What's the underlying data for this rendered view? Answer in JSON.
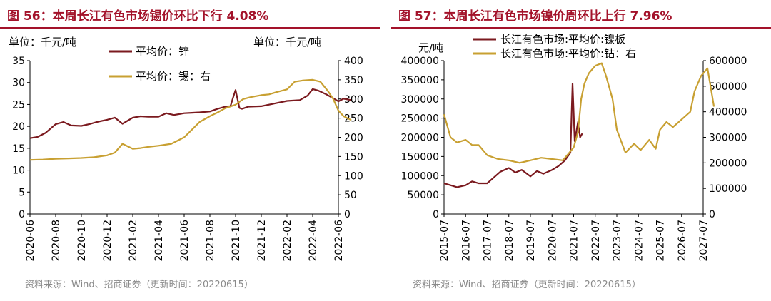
{
  "colors": {
    "accent": "#a3122a",
    "series_dark": "#7b1a1f",
    "series_gold": "#c8a032",
    "source_text": "#8a8a8a"
  },
  "left": {
    "title": "图 56：本周长江有色市场锡价环比下行 4.08%",
    "source": "资料来源：Wind、招商证券（更新时间：20220615）"
  },
  "right": {
    "title": "图 57：本周长江有色市场镍价周环比上行 7.96%",
    "source": "资料来源：Wind、招商证券（更新时间：20220615）"
  },
  "chart_data": [
    {
      "type": "line",
      "title": "本周长江有色市场锡价环比下行 4.08%",
      "left_unit": "单位：千元/吨",
      "right_unit": "单位：千元/吨",
      "categories": [
        "2020-06",
        "2020-08",
        "2020-10",
        "2020-12",
        "2021-02",
        "2021-04",
        "2021-06",
        "2021-08",
        "2021-10",
        "2021-12",
        "2022-02",
        "2022-04",
        "2022-06"
      ],
      "left_axis": {
        "min": 0,
        "max": 35,
        "ticks": [
          "0",
          "5",
          "10",
          "15",
          "20",
          "25",
          "30",
          "35"
        ]
      },
      "right_axis": {
        "min": 0,
        "max": 400,
        "ticks": [
          "0",
          "50",
          "100",
          "150",
          "200",
          "250",
          "300",
          "350",
          "400"
        ]
      },
      "series": [
        {
          "name": "平均价：锌",
          "axis": "left",
          "color": "#7b1a1f",
          "x": [
            0,
            0.3,
            0.6,
            1,
            1.3,
            1.6,
            2,
            2.3,
            2.6,
            3,
            3.3,
            3.6,
            4,
            4.3,
            4.6,
            5,
            5.3,
            5.6,
            6,
            6.3,
            6.6,
            7,
            7.3,
            7.6,
            7.8,
            7.9,
            8,
            8.15,
            8.25,
            8.5,
            9,
            9.5,
            10,
            10.5,
            10.8,
            11,
            11.2,
            11.5,
            11.8,
            12,
            12.2,
            12.5
          ],
          "values": [
            17.3,
            17.6,
            18.5,
            20.5,
            21,
            20.2,
            20.1,
            20.5,
            21,
            21.5,
            22,
            20.6,
            22,
            22.3,
            22.2,
            22.2,
            23,
            22.6,
            23,
            23.1,
            23.2,
            23.4,
            24,
            24.5,
            24.6,
            26.5,
            28.3,
            24.2,
            24,
            24.5,
            24.6,
            25.2,
            25.8,
            26,
            27,
            28.5,
            28.2,
            27.4,
            26.4,
            25.7,
            26.3,
            26
          ]
        },
        {
          "name": "平均价：锡：右",
          "axis": "right",
          "color": "#c8a032",
          "x": [
            0,
            0.5,
            1,
            1.5,
            2,
            2.5,
            3,
            3.3,
            3.6,
            4,
            4.3,
            4.6,
            5,
            5.5,
            6,
            6.3,
            6.6,
            7,
            7.3,
            7.6,
            8,
            8.3,
            8.6,
            9,
            9.3,
            9.6,
            10,
            10.3,
            10.6,
            11,
            11.3,
            11.6,
            11.8,
            12,
            12.2,
            12.5
          ],
          "values": [
            141,
            142,
            144,
            145,
            146,
            148,
            153,
            160,
            183,
            170,
            172,
            175,
            178,
            183,
            200,
            220,
            240,
            255,
            265,
            276,
            285,
            300,
            305,
            310,
            312,
            318,
            325,
            345,
            348,
            350,
            345,
            320,
            300,
            270,
            255,
            245
          ]
        }
      ]
    },
    {
      "type": "line",
      "title": "本周长江有色市场镍价周环比上行 7.96%",
      "left_unit": "元/吨",
      "categories": [
        "2015-07",
        "2016-07",
        "2017-07",
        "2018-07",
        "2019-07",
        "2020-07",
        "2021-07",
        "2022-07",
        "2023-07",
        "2024-07",
        "2025-07",
        "2026-07",
        "2027-07"
      ],
      "left_axis": {
        "min": 0,
        "max": 400000,
        "ticks": [
          "0",
          "50000",
          "100000",
          "150000",
          "200000",
          "250000",
          "300000",
          "350000",
          "400000"
        ]
      },
      "right_axis": {
        "min": 0,
        "max": 600000,
        "ticks": [
          "0",
          "100000",
          "200000",
          "300000",
          "400000",
          "500000",
          "600000"
        ]
      },
      "series": [
        {
          "name": "长江有色市场:平均价:镍板",
          "axis": "left",
          "color": "#7b1a1f",
          "x": [
            0,
            0.3,
            0.6,
            1,
            1.3,
            1.6,
            2,
            2.3,
            2.6,
            3,
            3.3,
            3.6,
            4,
            4.3,
            4.6,
            5,
            5.3,
            5.6,
            5.85,
            5.95,
            6.05,
            6.2,
            6.3,
            6.4
          ],
          "values": [
            80000,
            75000,
            70000,
            75000,
            85000,
            80000,
            80000,
            95000,
            110000,
            120000,
            108000,
            115000,
            98000,
            112000,
            105000,
            115000,
            125000,
            140000,
            160000,
            340000,
            190000,
            240000,
            200000,
            210000
          ]
        },
        {
          "name": "长江有色市场:平均价:钴：右",
          "axis": "right",
          "color": "#c8a032",
          "x": [
            0,
            0.3,
            0.6,
            1,
            1.3,
            1.6,
            2,
            2.5,
            3,
            3.5,
            4,
            4.5,
            5,
            5.5,
            6,
            6.2,
            6.35,
            6.5,
            6.7,
            7,
            7.3,
            7.5,
            7.8,
            8,
            8.4,
            8.8,
            9.1,
            9.5,
            9.8,
            10,
            10.3,
            10.6,
            11,
            11.4,
            11.6,
            11.9,
            12.2,
            12.4,
            12.5
          ],
          "values": [
            390000,
            300000,
            280000,
            290000,
            270000,
            270000,
            230000,
            215000,
            210000,
            200000,
            210000,
            220000,
            215000,
            210000,
            260000,
            320000,
            450000,
            510000,
            550000,
            580000,
            590000,
            540000,
            450000,
            330000,
            240000,
            275000,
            250000,
            290000,
            255000,
            330000,
            360000,
            340000,
            370000,
            400000,
            480000,
            540000,
            570000,
            470000,
            420000
          ]
        }
      ]
    }
  ]
}
